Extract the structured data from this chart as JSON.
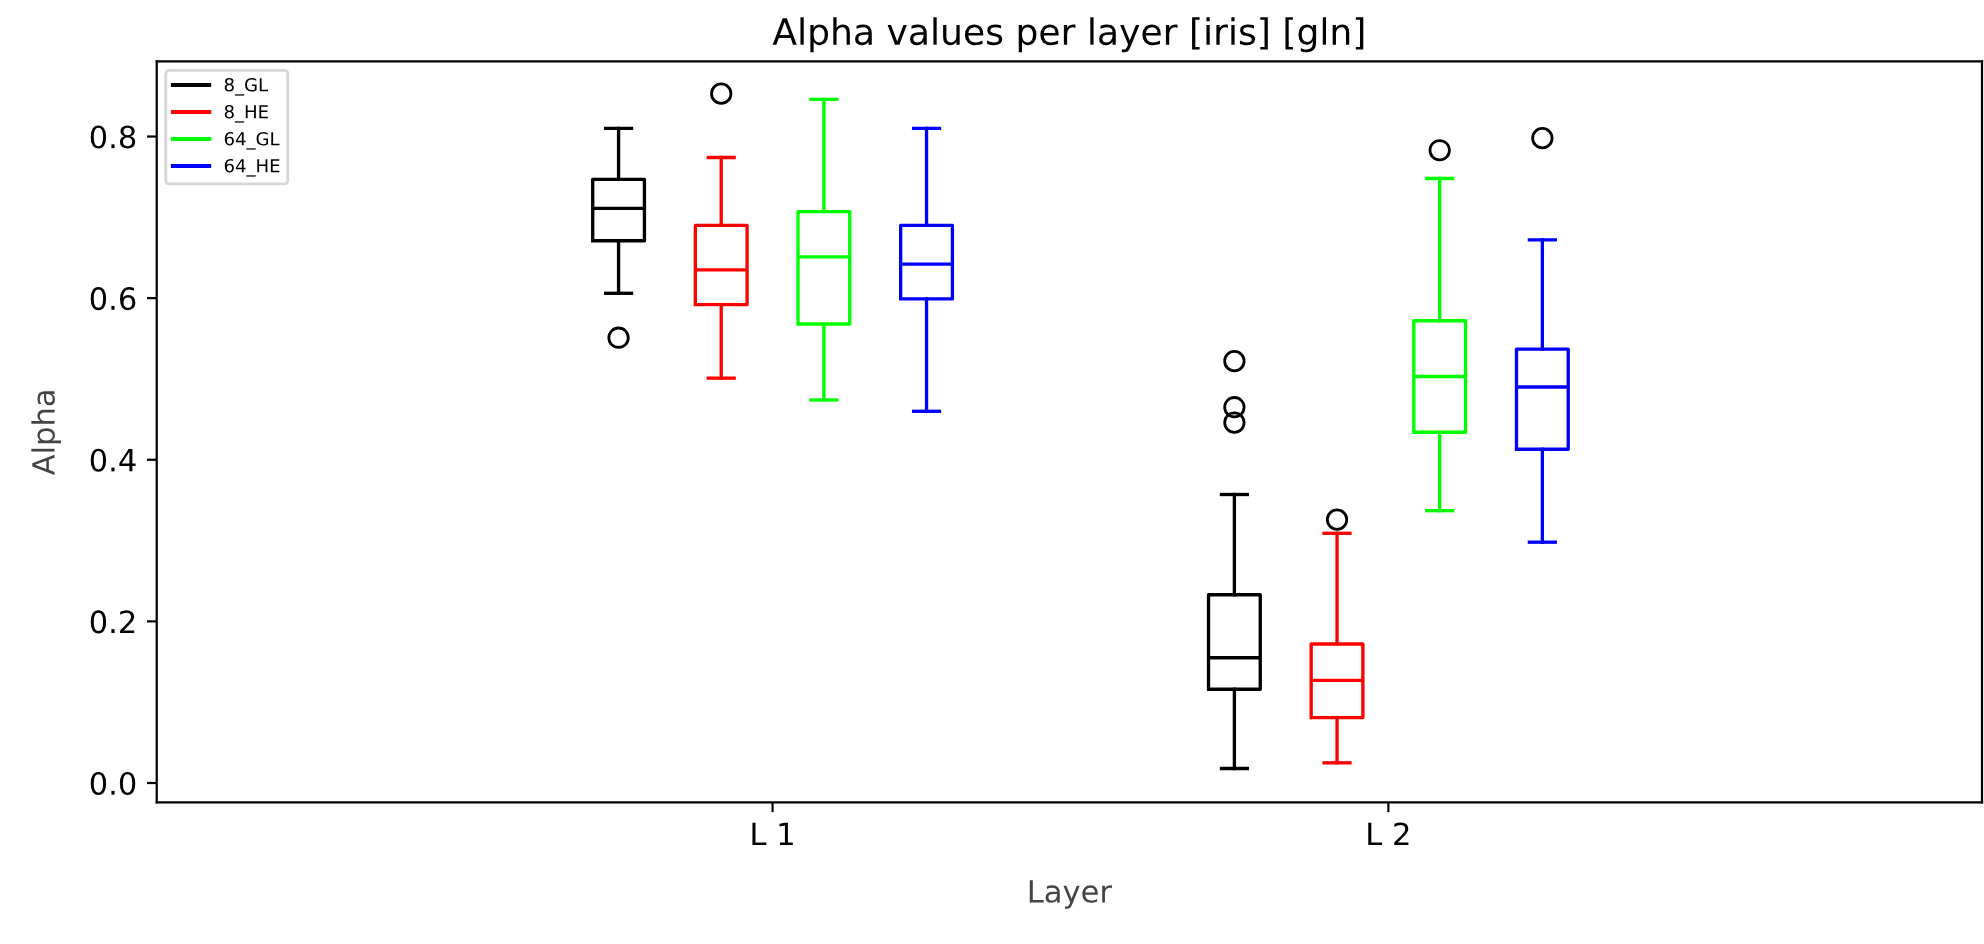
{
  "chart_data": {
    "type": "box",
    "title": "Alpha values per layer [iris] [gln]",
    "xlabel": "Layer",
    "ylabel": "Alpha",
    "categories": [
      "L 1",
      "L 2"
    ],
    "ylim": [
      -0.024,
      0.893
    ],
    "yticks": [
      {
        "value": 0.0,
        "label": "0.0"
      },
      {
        "value": 0.2,
        "label": "0.2"
      },
      {
        "value": 0.4,
        "label": "0.4"
      },
      {
        "value": 0.6,
        "label": "0.6"
      },
      {
        "value": 0.8,
        "label": "0.8"
      }
    ],
    "grid": false,
    "legend": "top left",
    "series": [
      {
        "name": "8_GL",
        "color": "#000000",
        "boxes": [
          {
            "low": 0.606,
            "q1": 0.671,
            "median": 0.711,
            "q3": 0.747,
            "high": 0.81,
            "outliers": [
              0.551
            ]
          },
          {
            "low": 0.018,
            "q1": 0.116,
            "median": 0.155,
            "q3": 0.233,
            "high": 0.357,
            "outliers": [
              0.522,
              0.465,
              0.446
            ]
          }
        ]
      },
      {
        "name": "8_HE",
        "color": "#ff0000",
        "boxes": [
          {
            "low": 0.501,
            "q1": 0.592,
            "median": 0.635,
            "q3": 0.69,
            "high": 0.774,
            "outliers": [
              0.853
            ]
          },
          {
            "low": 0.025,
            "q1": 0.081,
            "median": 0.127,
            "q3": 0.172,
            "high": 0.309,
            "outliers": [
              0.326
            ]
          }
        ]
      },
      {
        "name": "64_GL",
        "color": "#00ff00",
        "boxes": [
          {
            "low": 0.474,
            "q1": 0.568,
            "median": 0.651,
            "q3": 0.707,
            "high": 0.846
          },
          {
            "low": 0.337,
            "q1": 0.434,
            "median": 0.503,
            "q3": 0.572,
            "high": 0.748,
            "outliers": [
              0.783
            ]
          }
        ]
      },
      {
        "name": "64_HE",
        "color": "#0000ff",
        "boxes": [
          {
            "low": 0.46,
            "q1": 0.599,
            "median": 0.642,
            "q3": 0.69,
            "high": 0.81
          },
          {
            "low": 0.298,
            "q1": 0.413,
            "median": 0.49,
            "q3": 0.537,
            "high": 0.672,
            "outliers": [
              0.798
            ]
          }
        ]
      }
    ]
  }
}
